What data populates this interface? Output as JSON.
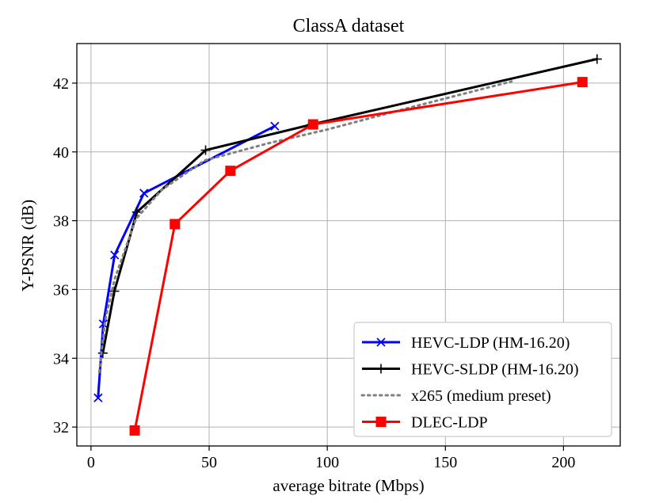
{
  "chart_data": {
    "type": "line",
    "title": "ClassA dataset",
    "xlabel": "average bitrate (Mbps)",
    "ylabel": "Y-PSNR (dB)",
    "xlim": [
      -6,
      224
    ],
    "ylim": [
      31.45,
      43.15
    ],
    "xticks": [
      0,
      50,
      100,
      150,
      200
    ],
    "yticks": [
      32,
      34,
      36,
      38,
      40,
      42
    ],
    "grid": true,
    "legend_position": "lower right",
    "series": [
      {
        "name": "HEVC-LDP (HM-16.20)",
        "color": "#0000ff",
        "line_style": "solid",
        "marker": "x",
        "x": [
          3.0,
          5.2,
          10.0,
          22.4,
          77.8
        ],
        "y": [
          32.85,
          35.0,
          37.0,
          38.8,
          40.75
        ]
      },
      {
        "name": "HEVC-SLDP (HM-16.20)",
        "color": "#000000",
        "line_style": "solid",
        "marker": "+",
        "x": [
          5.0,
          9.9,
          19.4,
          48.5,
          93.6,
          214.2
        ],
        "y": [
          34.15,
          35.95,
          38.25,
          40.05,
          40.8,
          42.7
        ]
      },
      {
        "name": "x265 (medium preset)",
        "color": "#808080",
        "line_style": "dotted",
        "marker": "none",
        "x": [
          3.5,
          6.0,
          10.0,
          19.0,
          30.0,
          48.0,
          75.0,
          100.0,
          130.0,
          178.0
        ],
        "y": [
          33.6,
          35.1,
          36.3,
          38.05,
          38.9,
          39.75,
          40.25,
          40.65,
          41.2,
          42.05
        ]
      },
      {
        "name": "DLEC-LDP",
        "color": "#ff0000",
        "line_style": "solid",
        "marker": "square",
        "x": [
          18.5,
          35.5,
          59.0,
          94.0,
          208.0
        ],
        "y": [
          31.9,
          37.9,
          39.45,
          40.8,
          42.03
        ]
      }
    ]
  }
}
